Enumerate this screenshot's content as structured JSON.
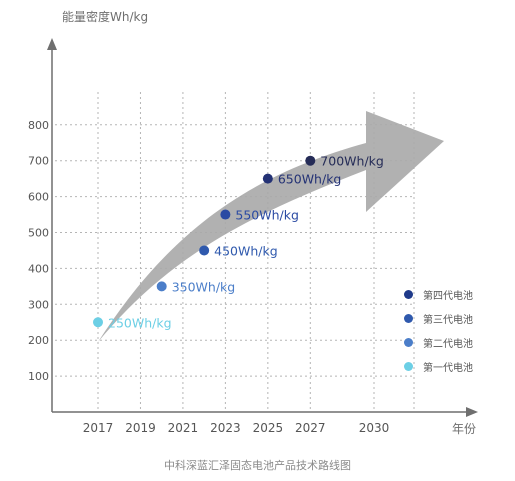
{
  "chart_data": {
    "type": "scatter",
    "title": "",
    "ylabel": "能量密度Wh/kg",
    "xlabel": "年份",
    "caption": "中科深蓝汇泽固态电池产品技术路线图",
    "xlim": [
      2016,
      2031
    ],
    "ylim": [
      0,
      800
    ],
    "x_ticks": [
      "2017",
      "2019",
      "2021",
      "2023",
      "2025",
      "2027",
      "2030"
    ],
    "y_ticks": [
      "100",
      "200",
      "300",
      "400",
      "500",
      "600",
      "700",
      "800"
    ],
    "grid": true,
    "legend_position": "right",
    "points": [
      {
        "x": 2017,
        "y": 250,
        "label": "250Wh/kg",
        "color": "#6ccfe5"
      },
      {
        "x": 2020,
        "y": 350,
        "label": "350Wh/kg",
        "color": "#4b7ec9"
      },
      {
        "x": 2022,
        "y": 450,
        "label": "450Wh/kg",
        "color": "#2f59ad"
      },
      {
        "x": 2023,
        "y": 550,
        "label": "550Wh/kg",
        "color": "#2a4aa3"
      },
      {
        "x": 2025,
        "y": 650,
        "label": "650Wh/kg",
        "color": "#243275"
      },
      {
        "x": 2027,
        "y": 700,
        "label": "700Wh/kg",
        "color": "#252c57"
      }
    ],
    "legend": [
      {
        "name": "第四代电池",
        "color": "#1f3a8a"
      },
      {
        "name": "第三代电池",
        "color": "#2f59ad"
      },
      {
        "name": "第二代电池",
        "color": "#4b7ec9"
      },
      {
        "name": "第一代电池",
        "color": "#6ccfe5"
      }
    ]
  }
}
